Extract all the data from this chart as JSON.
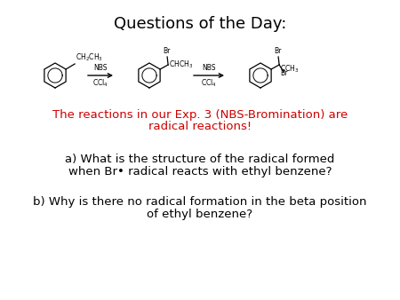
{
  "title": "Questions of the Day:",
  "red_text_line1": "The reactions in our Exp. 3 (NBS-Bromination) are",
  "red_text_line2": "radical reactions!",
  "qa_line1": "a) What is the structure of the radical formed",
  "qa_line2": "when Br• radical reacts with ethyl benzene?",
  "qb_line1": "b) Why is there no radical formation in the beta position",
  "qb_line2": "of ethyl benzene?",
  "background_color": "#ffffff",
  "title_fontsize": 13,
  "red_fontsize": 9.5,
  "qa_fontsize": 9.5,
  "title_color": "#000000",
  "red_color": "#cc0000",
  "text_color": "#000000",
  "mol_fontsize": 5.5,
  "arrow_fontsize": 5.5
}
